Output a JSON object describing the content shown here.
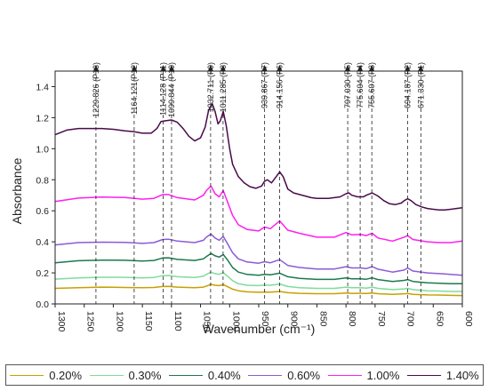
{
  "chart_data": {
    "type": "line",
    "title": "",
    "xlabel": "Wavenumber (cm⁻¹)",
    "ylabel": "Absorbance",
    "xlim": [
      1300,
      600
    ],
    "ylim": [
      0.0,
      1.5
    ],
    "x_ticks": [
      1300,
      1250,
      1200,
      1150,
      1100,
      1050,
      1000,
      950,
      900,
      850,
      800,
      750,
      700,
      650,
      600
    ],
    "y_ticks": [
      0.0,
      0.2,
      0.4,
      0.6,
      0.8,
      1.0,
      1.2,
      1.4
    ],
    "y_tick_labels": [
      "0.0",
      "0.2",
      "0.4",
      "0.6",
      "0.8",
      "1.0",
      "1.2",
      "1.4"
    ],
    "grid": false,
    "legend_position": "bottom",
    "peaks": [
      {
        "x": 1229.826,
        "label": "1229.826 (P13)"
      },
      {
        "x": 1164.121,
        "label": "1164.121(P12)"
      },
      {
        "x": 1114.128,
        "label": "1114.128 (P11)"
      },
      {
        "x": 1099.844,
        "label": "1099.844 (P10)"
      },
      {
        "x": 1032.711,
        "label": "1032.711 (P9)"
      },
      {
        "x": 1011.285,
        "label": "1011.285 (P8)"
      },
      {
        "x": 939.867,
        "label": "939.867 (P7)"
      },
      {
        "x": 914.156,
        "label": "914.156 (P6)"
      },
      {
        "x": 797.03,
        "label": "797.030 (P5)"
      },
      {
        "x": 775.604,
        "label": "775.604 (P4)"
      },
      {
        "x": 755.607,
        "label": "755.607 (P3)"
      },
      {
        "x": 694.187,
        "label": "694.187 (P2)"
      },
      {
        "x": 671.33,
        "label": "671.330 (P1)"
      }
    ],
    "series": [
      {
        "name": "0.20%",
        "color": "#c8a000",
        "x": [
          1300,
          1260,
          1220,
          1180,
          1150,
          1130,
          1115,
          1105,
          1090,
          1060,
          1045,
          1040,
          1032,
          1025,
          1018,
          1011,
          1004,
          995,
          985,
          970,
          950,
          940,
          930,
          914,
          900,
          880,
          850,
          820,
          800,
          790,
          775,
          765,
          755,
          745,
          720,
          700,
          694,
          685,
          660,
          640,
          620,
          600
        ],
        "y": [
          0.1,
          0.105,
          0.108,
          0.106,
          0.105,
          0.106,
          0.112,
          0.113,
          0.108,
          0.105,
          0.108,
          0.115,
          0.126,
          0.12,
          0.118,
          0.124,
          0.112,
          0.095,
          0.085,
          0.078,
          0.075,
          0.077,
          0.076,
          0.08,
          0.072,
          0.068,
          0.066,
          0.066,
          0.07,
          0.068,
          0.068,
          0.067,
          0.07,
          0.066,
          0.062,
          0.065,
          0.067,
          0.062,
          0.058,
          0.057,
          0.055,
          0.054
        ]
      },
      {
        "name": "0.30%",
        "color": "#7fdc9a",
        "x": [
          1300,
          1260,
          1220,
          1180,
          1150,
          1130,
          1115,
          1105,
          1090,
          1060,
          1045,
          1040,
          1032,
          1025,
          1018,
          1011,
          1004,
          995,
          985,
          970,
          950,
          940,
          930,
          914,
          900,
          880,
          850,
          820,
          800,
          790,
          775,
          765,
          755,
          745,
          720,
          700,
          694,
          685,
          660,
          640,
          620,
          600
        ],
        "y": [
          0.16,
          0.168,
          0.172,
          0.171,
          0.168,
          0.17,
          0.182,
          0.183,
          0.175,
          0.17,
          0.178,
          0.19,
          0.205,
          0.195,
          0.19,
          0.202,
          0.18,
          0.15,
          0.13,
          0.12,
          0.118,
          0.122,
          0.12,
          0.128,
          0.112,
          0.105,
          0.1,
          0.1,
          0.108,
          0.104,
          0.104,
          0.102,
          0.108,
          0.1,
          0.092,
          0.097,
          0.1,
          0.092,
          0.085,
          0.083,
          0.08,
          0.08
        ]
      },
      {
        "name": "0.40%",
        "color": "#1a7a4e",
        "x": [
          1300,
          1260,
          1220,
          1180,
          1150,
          1130,
          1115,
          1105,
          1090,
          1060,
          1045,
          1040,
          1032,
          1025,
          1018,
          1011,
          1004,
          995,
          985,
          970,
          950,
          940,
          930,
          914,
          900,
          880,
          850,
          820,
          800,
          790,
          775,
          765,
          755,
          745,
          720,
          700,
          694,
          685,
          660,
          640,
          620,
          600
        ],
        "y": [
          0.265,
          0.278,
          0.282,
          0.281,
          0.276,
          0.28,
          0.296,
          0.297,
          0.287,
          0.28,
          0.29,
          0.305,
          0.325,
          0.31,
          0.302,
          0.318,
          0.285,
          0.235,
          0.205,
          0.19,
          0.185,
          0.19,
          0.187,
          0.198,
          0.175,
          0.165,
          0.158,
          0.158,
          0.168,
          0.162,
          0.162,
          0.159,
          0.168,
          0.157,
          0.145,
          0.152,
          0.157,
          0.145,
          0.136,
          0.133,
          0.13,
          0.13
        ]
      },
      {
        "name": "0.60%",
        "color": "#8a5bd6",
        "x": [
          1300,
          1260,
          1220,
          1180,
          1150,
          1130,
          1115,
          1105,
          1090,
          1060,
          1045,
          1040,
          1032,
          1025,
          1018,
          1011,
          1004,
          995,
          985,
          970,
          950,
          940,
          930,
          914,
          900,
          880,
          850,
          820,
          800,
          790,
          775,
          765,
          755,
          745,
          720,
          700,
          694,
          685,
          660,
          640,
          620,
          600
        ],
        "y": [
          0.38,
          0.395,
          0.398,
          0.397,
          0.39,
          0.395,
          0.415,
          0.417,
          0.405,
          0.395,
          0.41,
          0.43,
          0.45,
          0.425,
          0.41,
          0.435,
          0.39,
          0.33,
          0.29,
          0.27,
          0.262,
          0.272,
          0.265,
          0.285,
          0.248,
          0.235,
          0.225,
          0.225,
          0.24,
          0.232,
          0.232,
          0.228,
          0.24,
          0.224,
          0.205,
          0.218,
          0.232,
          0.212,
          0.2,
          0.195,
          0.19,
          0.185
        ]
      },
      {
        "name": "1.00%",
        "color": "#ff1ef0",
        "x": [
          1300,
          1260,
          1220,
          1180,
          1150,
          1130,
          1115,
          1105,
          1090,
          1060,
          1045,
          1040,
          1032,
          1025,
          1018,
          1011,
          1004,
          995,
          985,
          970,
          950,
          940,
          930,
          914,
          900,
          880,
          850,
          820,
          800,
          790,
          775,
          765,
          755,
          745,
          720,
          700,
          694,
          685,
          660,
          640,
          620,
          600
        ],
        "y": [
          0.66,
          0.682,
          0.688,
          0.686,
          0.675,
          0.68,
          0.705,
          0.705,
          0.685,
          0.67,
          0.7,
          0.73,
          0.76,
          0.71,
          0.69,
          0.73,
          0.66,
          0.57,
          0.51,
          0.48,
          0.47,
          0.495,
          0.485,
          0.535,
          0.475,
          0.455,
          0.43,
          0.43,
          0.46,
          0.445,
          0.447,
          0.44,
          0.455,
          0.425,
          0.405,
          0.43,
          0.44,
          0.415,
          0.4,
          0.395,
          0.395,
          0.405
        ]
      },
      {
        "name": "1.40%",
        "color": "#4a0a4a",
        "x": [
          1300,
          1280,
          1260,
          1240,
          1220,
          1200,
          1180,
          1165,
          1150,
          1135,
          1125,
          1118,
          1110,
          1100,
          1090,
          1080,
          1070,
          1060,
          1050,
          1042,
          1036,
          1030,
          1025,
          1020,
          1016,
          1011,
          1006,
          1000,
          995,
          985,
          975,
          965,
          955,
          945,
          940,
          935,
          928,
          920,
          914,
          908,
          900,
          890,
          880,
          870,
          860,
          850,
          840,
          830,
          820,
          810,
          800,
          795,
          790,
          780,
          770,
          765,
          755,
          745,
          735,
          725,
          715,
          705,
          700,
          694,
          688,
          680,
          670,
          660,
          650,
          640,
          630,
          620,
          610,
          600
        ],
        "y": [
          1.09,
          1.12,
          1.13,
          1.13,
          1.13,
          1.125,
          1.115,
          1.11,
          1.1,
          1.1,
          1.13,
          1.175,
          1.18,
          1.185,
          1.17,
          1.13,
          1.08,
          1.05,
          1.07,
          1.14,
          1.25,
          1.29,
          1.24,
          1.16,
          1.18,
          1.24,
          1.15,
          1.0,
          0.9,
          0.82,
          0.78,
          0.755,
          0.745,
          0.76,
          0.79,
          0.8,
          0.78,
          0.82,
          0.85,
          0.82,
          0.74,
          0.715,
          0.705,
          0.695,
          0.685,
          0.68,
          0.68,
          0.68,
          0.685,
          0.69,
          0.71,
          0.715,
          0.7,
          0.69,
          0.69,
          0.7,
          0.715,
          0.695,
          0.665,
          0.645,
          0.64,
          0.65,
          0.665,
          0.678,
          0.665,
          0.64,
          0.625,
          0.615,
          0.61,
          0.605,
          0.605,
          0.61,
          0.615,
          0.62
        ]
      }
    ]
  }
}
